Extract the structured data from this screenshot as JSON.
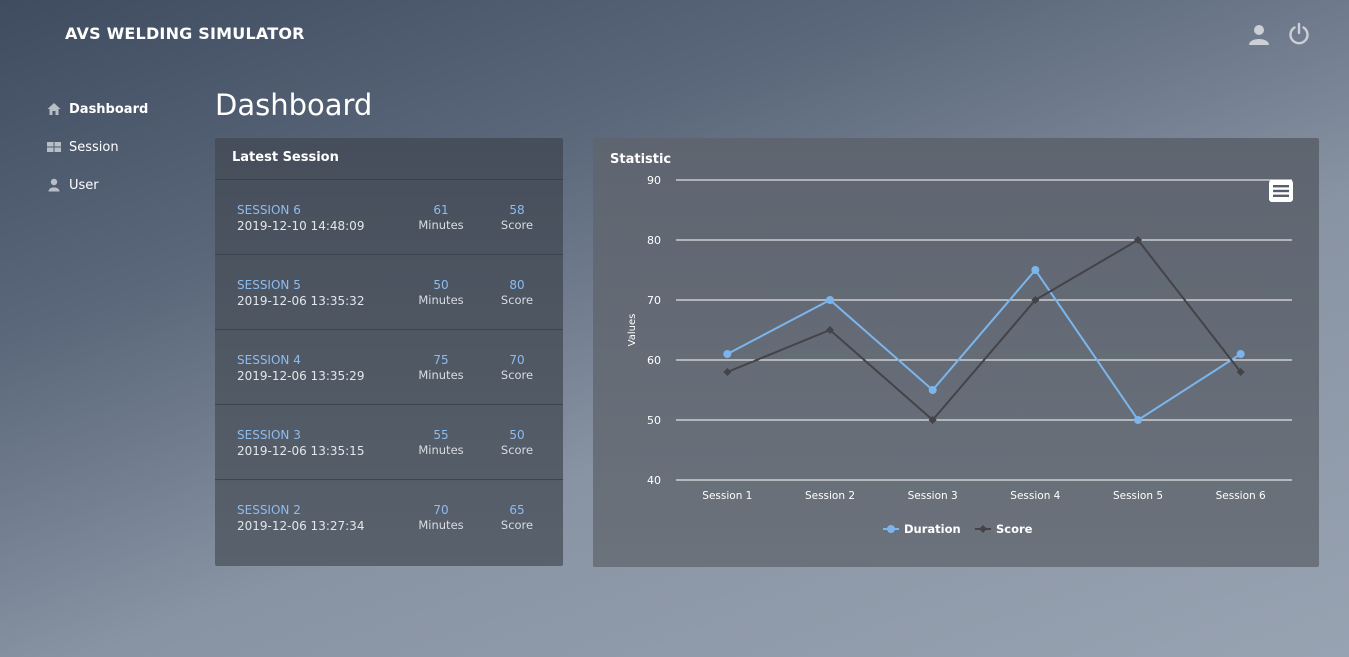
{
  "brand": "AVS WELDING SIMULATOR",
  "page_title": "Dashboard",
  "sidebar": {
    "items": [
      {
        "label": "Dashboard",
        "icon": "home-icon",
        "active": true
      },
      {
        "label": "Session",
        "icon": "grid-icon",
        "active": false
      },
      {
        "label": "User",
        "icon": "user-icon",
        "active": false
      }
    ]
  },
  "header_icons": [
    "user-icon",
    "power-icon"
  ],
  "latest": {
    "title": "Latest Session",
    "sessions": [
      {
        "name": "SESSION 6",
        "date": "2019-12-10 14:48:09",
        "minutes": "61",
        "minutes_label": "Minutes",
        "score": "58",
        "score_label": "Score"
      },
      {
        "name": "SESSION 5",
        "date": "2019-12-06 13:35:32",
        "minutes": "50",
        "minutes_label": "Minutes",
        "score": "80",
        "score_label": "Score"
      },
      {
        "name": "SESSION 4",
        "date": "2019-12-06 13:35:29",
        "minutes": "75",
        "minutes_label": "Minutes",
        "score": "70",
        "score_label": "Score"
      },
      {
        "name": "SESSION 3",
        "date": "2019-12-06 13:35:15",
        "minutes": "55",
        "minutes_label": "Minutes",
        "score": "50",
        "score_label": "Score"
      },
      {
        "name": "SESSION 2",
        "date": "2019-12-06 13:27:34",
        "minutes": "70",
        "minutes_label": "Minutes",
        "score": "65",
        "score_label": "Score"
      }
    ]
  },
  "chart_data": {
    "type": "line",
    "title": "Statistic",
    "ylabel": "Values",
    "xlabel": "",
    "categories": [
      "Session 1",
      "Session 2",
      "Session 3",
      "Session 4",
      "Session 5",
      "Session 6"
    ],
    "series": [
      {
        "name": "Duration",
        "values": [
          61,
          70,
          55,
          75,
          50,
          61
        ],
        "color": "#7cb5ec",
        "marker": "circle"
      },
      {
        "name": "Score",
        "values": [
          58,
          65,
          50,
          70,
          80,
          58
        ],
        "color": "#434348",
        "marker": "diamond"
      }
    ],
    "ylim": [
      40,
      90
    ],
    "yticks": [
      40,
      50,
      60,
      70,
      80,
      90
    ],
    "grid": true,
    "legend": "bottom-center"
  }
}
